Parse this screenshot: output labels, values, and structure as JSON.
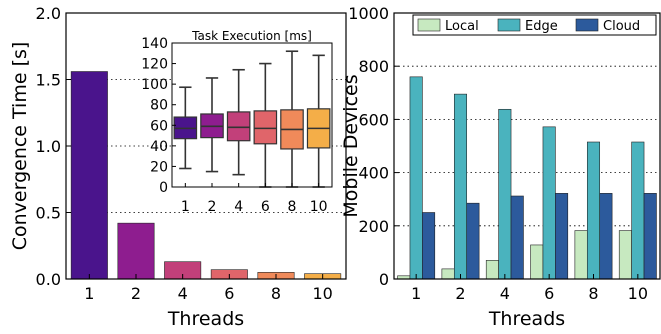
{
  "chart_data": [
    {
      "type": "bar",
      "categories": [
        "1",
        "2",
        "4",
        "6",
        "8",
        "10"
      ],
      "values": [
        1.56,
        0.42,
        0.13,
        0.07,
        0.05,
        0.04
      ],
      "colors": [
        "#4a148c",
        "#8e1d8f",
        "#c2407a",
        "#e0656a",
        "#f08a5a",
        "#f4ae48"
      ],
      "xlabel": "Threads",
      "ylabel": "Convergence Time [s]",
      "ylim": [
        0,
        2.0
      ],
      "yticks": [
        "0.0",
        "0.5",
        "1.0",
        "1.5",
        "2.0"
      ],
      "grid": "horizontal-dotted"
    },
    {
      "type": "box",
      "title": "Task Execution [ms]",
      "categories": [
        "1",
        "2",
        "4",
        "6",
        "8",
        "10"
      ],
      "boxes": [
        {
          "whislo": 18,
          "q1": 47,
          "med": 57,
          "q3": 68,
          "whishi": 97
        },
        {
          "whislo": 15,
          "q1": 48,
          "med": 59,
          "q3": 71,
          "whishi": 106
        },
        {
          "whislo": 12,
          "q1": 45,
          "med": 58,
          "q3": 73,
          "whishi": 114
        },
        {
          "whislo": 0,
          "q1": 42,
          "med": 57,
          "q3": 74,
          "whishi": 120
        },
        {
          "whislo": 0,
          "q1": 37,
          "med": 56,
          "q3": 75,
          "whishi": 132
        },
        {
          "whislo": 0,
          "q1": 38,
          "med": 57,
          "q3": 76,
          "whishi": 128
        }
      ],
      "colors": [
        "#4a148c",
        "#8e1d8f",
        "#c2407a",
        "#e0656a",
        "#f08a5a",
        "#f4ae48"
      ],
      "ylim": [
        0,
        140
      ],
      "yticks": [
        "0",
        "20",
        "40",
        "60",
        "80",
        "100",
        "120",
        "140"
      ]
    },
    {
      "type": "bar",
      "categories": [
        "1",
        "2",
        "4",
        "6",
        "8",
        "10"
      ],
      "series": [
        {
          "name": "Local",
          "color": "#c7e9c0",
          "values": [
            12,
            38,
            70,
            128,
            182,
            182
          ]
        },
        {
          "name": "Edge",
          "color": "#4ab3be",
          "values": [
            760,
            695,
            638,
            572,
            515,
            515
          ]
        },
        {
          "name": "Cloud",
          "color": "#2c5a9c",
          "values": [
            250,
            285,
            312,
            322,
            322,
            322
          ]
        }
      ],
      "xlabel": "Threads",
      "ylabel": "Mobile Devices",
      "ylim": [
        0,
        1000
      ],
      "yticks": [
        "0",
        "200",
        "400",
        "600",
        "800",
        "1000"
      ],
      "legend": "top",
      "grid": "horizontal-dotted"
    }
  ]
}
